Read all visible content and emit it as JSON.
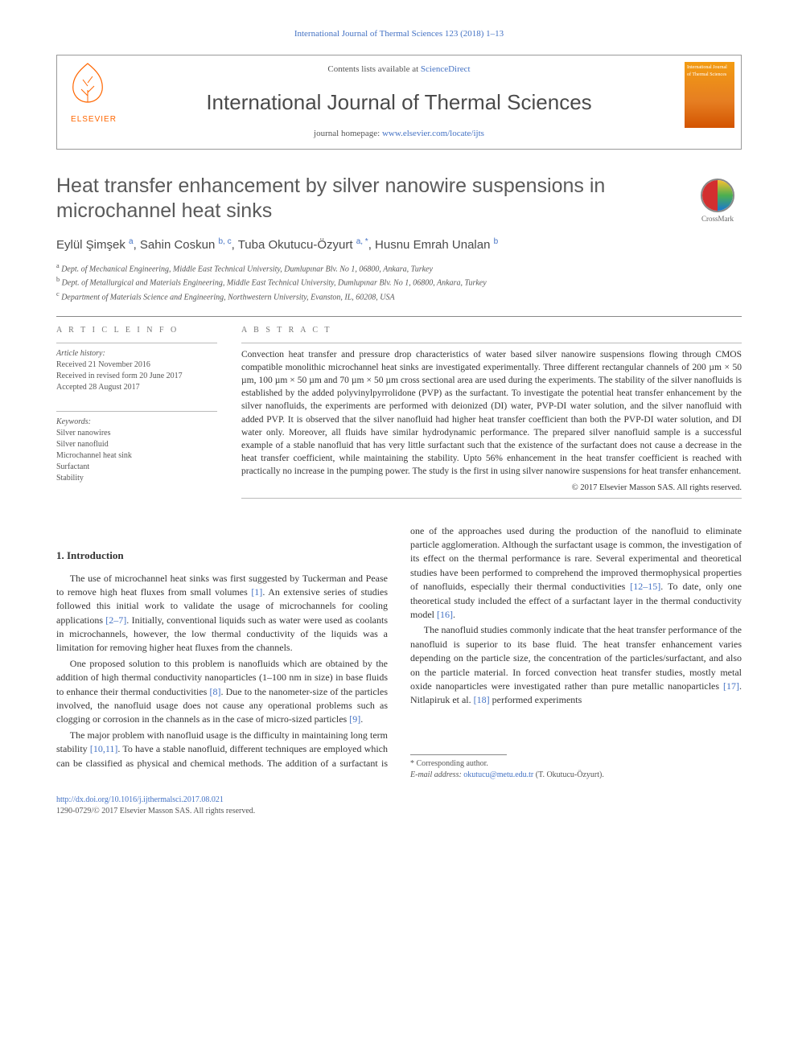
{
  "running_head": "International Journal of Thermal Sciences 123 (2018) 1–13",
  "masthead": {
    "contents_line_prefix": "Contents lists available at ",
    "contents_link": "ScienceDirect",
    "journal_name": "International Journal of Thermal Sciences",
    "homepage_prefix": "journal homepage: ",
    "homepage_url": "www.elsevier.com/locate/ijts",
    "publisher_brand": "ELSEVIER",
    "cover_text": "International Journal of Thermal Sciences"
  },
  "crossmark_label": "CrossMark",
  "title": "Heat transfer enhancement by silver nanowire suspensions in microchannel heat sinks",
  "authors_html": "Eylül Şimşek <sup>a</sup>, Sahin Coskun <sup>b, c</sup>, Tuba Okutucu-Özyurt <sup>a, *</sup>, Husnu Emrah Unalan <sup>b</sup>",
  "affiliations": [
    {
      "sup": "a",
      "text": "Dept. of Mechanical Engineering, Middle East Technical University, Dumlupınar Blv. No 1, 06800, Ankara, Turkey"
    },
    {
      "sup": "b",
      "text": "Dept. of Metallurgical and Materials Engineering, Middle East Technical University, Dumlupınar Blv. No 1, 06800, Ankara, Turkey"
    },
    {
      "sup": "c",
      "text": "Department of Materials Science and Engineering, Northwestern University, Evanston, IL, 60208, USA"
    }
  ],
  "article_info_heading": "A R T I C L E   I N F O",
  "history": {
    "label": "Article history:",
    "received": "Received 21 November 2016",
    "revised": "Received in revised form 20 June 2017",
    "accepted": "Accepted 28 August 2017"
  },
  "keywords_label": "Keywords:",
  "keywords": [
    "Silver nanowires",
    "Silver nanofluid",
    "Microchannel heat sink",
    "Surfactant",
    "Stability"
  ],
  "abstract_heading": "A B S T R A C T",
  "abstract_text": "Convection heat transfer and pressure drop characteristics of water based silver nanowire suspensions flowing through CMOS compatible monolithic microchannel heat sinks are investigated experimentally. Three different rectangular channels of 200 µm × 50 µm, 100 µm × 50 µm and 70 µm × 50 µm cross sectional area are used during the experiments. The stability of the silver nanofluids is established by the added polyvinylpyrrolidone (PVP) as the surfactant. To investigate the potential heat transfer enhancement by the silver nanofluids, the experiments are performed with deionized (DI) water, PVP-DI water solution, and the silver nanofluid with added PVP. It is observed that the silver nanofluid had higher heat transfer coefficient than both the PVP-DI water solution, and DI water only. Moreover, all fluids have similar hydrodynamic performance. The prepared silver nanofluid sample is a successful example of a stable nanofluid that has very little surfactant such that the existence of the surfactant does not cause a decrease in the heat transfer coefficient, while maintaining the stability. Upto 56% enhancement in the heat transfer coefficient is reached with practically no increase in the pumping power. The study is the first in using silver nanowire suspensions for heat transfer enhancement.",
  "abstract_copyright": "© 2017 Elsevier Masson SAS. All rights reserved.",
  "section1_heading": "1. Introduction",
  "intro_p1_a": "The use of microchannel heat sinks was first suggested by Tuckerman and Pease to remove high heat fluxes from small volumes ",
  "intro_p1_cite1": "[1]",
  "intro_p1_b": ". An extensive series of studies followed this initial work to validate the usage of microchannels for cooling applications ",
  "intro_p1_cite2": "[2–7]",
  "intro_p1_c": ". Initially, conventional liquids such as water were used as coolants in microchannels, however, the low thermal conductivity of the liquids was a limitation for removing higher heat fluxes from the channels.",
  "intro_p2_a": "One proposed solution to this problem is nanofluids which are obtained by the addition of high thermal conductivity nanoparticles (1–100 nm in size) in base fluids to enhance their thermal conductivities ",
  "intro_p2_cite1": "[8]",
  "intro_p2_b": ". Due to the nanometer-size of the particles involved, the nanofluid usage does not cause any operational problems such as clogging or corrosion in the channels as in the case of micro-sized particles ",
  "intro_p2_cite2": "[9]",
  "intro_p2_c": ".",
  "intro_p3_a": "The major problem with nanofluid usage is the difficulty in maintaining long term stability ",
  "intro_p3_cite1": "[10,11]",
  "intro_p3_b": ". To have a stable nanofluid, different techniques are employed which can be classified as physical and chemical methods. The addition of a surfactant is one of the approaches used during the production of the nanofluid to eliminate particle agglomeration. Although the surfactant usage is common, the investigation of its effect on the thermal performance is rare. Several experimental and theoretical studies have been performed to comprehend the improved thermophysical properties of nanofluids, especially their thermal conductivities ",
  "intro_p3_cite2": "[12–15]",
  "intro_p3_c": ". To date, only one theoretical study included the effect of a surfactant layer in the thermal conductivity model ",
  "intro_p3_cite3": "[16]",
  "intro_p3_d": ".",
  "intro_p4_a": "The nanofluid studies commonly indicate that the heat transfer performance of the nanofluid is superior to its base fluid. The heat transfer enhancement varies depending on the particle size, the concentration of the particles/surfactant, and also on the particle material. In forced convection heat transfer studies, mostly metal oxide nanoparticles were investigated rather than pure metallic nanoparticles ",
  "intro_p4_cite1": "[17]",
  "intro_p4_b": ". Nitlapiruk et al. ",
  "intro_p4_cite2": "[18]",
  "intro_p4_c": " performed experiments",
  "footnotes": {
    "corr": "* Corresponding author.",
    "email_label": "E-mail address: ",
    "email": "okutucu@metu.edu.tr",
    "email_person": " (T. Okutucu-Özyurt)."
  },
  "footer": {
    "doi": "http://dx.doi.org/10.1016/j.ijthermalsci.2017.08.021",
    "issn_line": "1290-0729/© 2017 Elsevier Masson SAS. All rights reserved."
  },
  "colors": {
    "link": "#4472c4",
    "elsevier_orange": "#ff6600",
    "text": "#333333",
    "muted": "#777777",
    "rule": "#888888"
  }
}
